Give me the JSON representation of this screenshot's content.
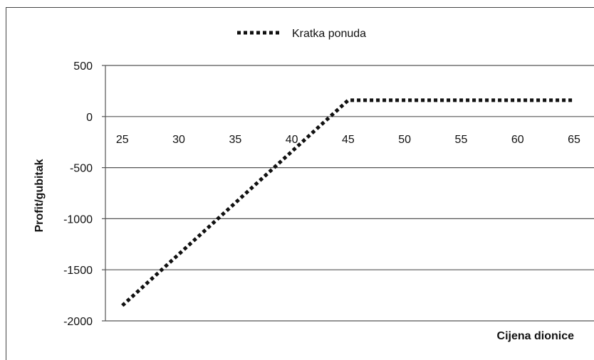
{
  "chart_data": {
    "type": "line",
    "xlabel": "Cijena dionice",
    "ylabel": "Profit/gubitak",
    "x_ticks": [
      25,
      30,
      35,
      40,
      45,
      50,
      55,
      60,
      65
    ],
    "y_ticks": [
      500,
      0,
      -500,
      -1000,
      -1500,
      -2000
    ],
    "xlim": [
      23.5,
      65
    ],
    "ylim": [
      -2000,
      500
    ],
    "grid": "horizontal",
    "legend_position": "top-center",
    "series": [
      {
        "name": "Kratka ponuda",
        "style": "dotted",
        "color": "#111111",
        "x": [
          25,
          45,
          65
        ],
        "y": [
          -1850,
          160,
          160
        ]
      }
    ]
  }
}
